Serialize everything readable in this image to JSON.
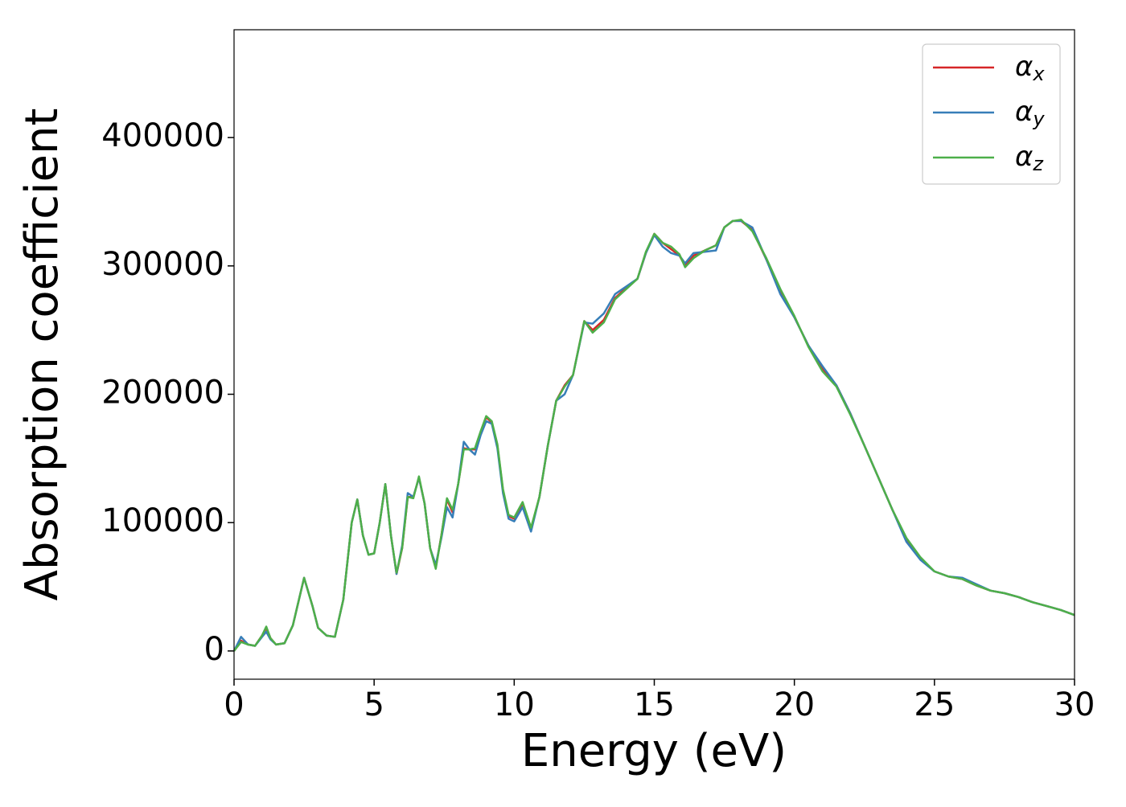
{
  "chart_data": {
    "type": "line",
    "xlabel": "Energy (eV)",
    "ylabel": "Absorption coefficient",
    "x": [
      0,
      0.25,
      0.5,
      0.75,
      1.0,
      1.15,
      1.3,
      1.5,
      1.8,
      2.1,
      2.5,
      2.8,
      3.0,
      3.3,
      3.6,
      3.9,
      4.2,
      4.4,
      4.6,
      4.8,
      5.0,
      5.2,
      5.4,
      5.6,
      5.8,
      6.0,
      6.2,
      6.4,
      6.6,
      6.8,
      7.0,
      7.2,
      7.4,
      7.6,
      7.8,
      8.0,
      8.2,
      8.4,
      8.6,
      8.8,
      9.0,
      9.2,
      9.4,
      9.6,
      9.8,
      10.0,
      10.3,
      10.6,
      10.9,
      11.2,
      11.5,
      11.8,
      12.1,
      12.5,
      12.8,
      13.2,
      13.6,
      14.0,
      14.4,
      14.7,
      15.0,
      15.3,
      15.6,
      15.9,
      16.1,
      16.4,
      16.8,
      17.2,
      17.5,
      17.8,
      18.1,
      18.5,
      19.0,
      19.5,
      20.0,
      20.5,
      21.0,
      21.5,
      22.0,
      22.5,
      23.0,
      23.5,
      24.0,
      24.5,
      25.0,
      25.5,
      26.0,
      26.5,
      27.0,
      27.5,
      28.0,
      28.5,
      29.0,
      29.5,
      30.0
    ],
    "series": [
      {
        "name": "αx",
        "color": "#d62728",
        "values": [
          0,
          8000,
          5000,
          4000,
          12000,
          18000,
          10000,
          5000,
          6000,
          20000,
          57000,
          35000,
          18000,
          12000,
          11000,
          40000,
          100000,
          118000,
          90000,
          75000,
          76000,
          100000,
          130000,
          90000,
          60000,
          80000,
          120000,
          120000,
          135000,
          115000,
          80000,
          65000,
          90000,
          118000,
          108000,
          130000,
          158000,
          157000,
          157000,
          170000,
          182000,
          178000,
          160000,
          125000,
          105000,
          103000,
          115000,
          95000,
          120000,
          160000,
          195000,
          207000,
          215000,
          257000,
          250000,
          258000,
          275000,
          283000,
          290000,
          310000,
          325000,
          318000,
          313000,
          308000,
          300000,
          308000,
          312000,
          316000,
          330000,
          335000,
          335000,
          328000,
          305000,
          280000,
          260000,
          238000,
          220000,
          207000,
          185000,
          160000,
          135000,
          110000,
          87000,
          72000,
          62000,
          58000,
          56000,
          51000,
          47000,
          45000,
          42000,
          38000,
          35000,
          32000,
          28000
        ]
      },
      {
        "name": "αy",
        "color": "#377eb8",
        "values": [
          0,
          11000,
          5000,
          4000,
          11000,
          15000,
          9000,
          5000,
          6000,
          20000,
          57000,
          35000,
          18000,
          12000,
          11000,
          40000,
          100000,
          118000,
          90000,
          75000,
          76000,
          100000,
          130000,
          90000,
          60000,
          82000,
          123000,
          120000,
          135000,
          115000,
          80000,
          67000,
          88000,
          112000,
          104000,
          130000,
          163000,
          157000,
          153000,
          168000,
          179000,
          177000,
          158000,
          123000,
          103000,
          101000,
          112000,
          93000,
          120000,
          160000,
          195000,
          200000,
          215000,
          256000,
          255000,
          263000,
          278000,
          284000,
          290000,
          310000,
          324000,
          315000,
          310000,
          308000,
          302000,
          310000,
          311000,
          312000,
          330000,
          335000,
          335000,
          330000,
          305000,
          278000,
          260000,
          238000,
          222000,
          207000,
          185000,
          160000,
          135000,
          110000,
          85000,
          71000,
          62000,
          58000,
          57000,
          52000,
          47000,
          45000,
          42000,
          38000,
          35000,
          32000,
          28000
        ]
      },
      {
        "name": "αz",
        "color": "#4daf4a",
        "values": [
          0,
          7000,
          5000,
          4000,
          12000,
          19000,
          10000,
          5000,
          6000,
          20000,
          57000,
          35000,
          18000,
          12000,
          11000,
          40000,
          100000,
          118000,
          90000,
          75000,
          76000,
          100000,
          130000,
          90000,
          61000,
          80000,
          120000,
          119000,
          136000,
          115000,
          80000,
          64000,
          90000,
          119000,
          110000,
          130000,
          157000,
          157000,
          158000,
          171000,
          183000,
          179000,
          161000,
          126000,
          106000,
          104000,
          116000,
          96000,
          120000,
          160000,
          195000,
          206000,
          215000,
          257000,
          248000,
          256000,
          274000,
          282000,
          290000,
          311000,
          325000,
          318000,
          315000,
          309000,
          299000,
          306000,
          312000,
          316000,
          330000,
          335000,
          336000,
          327000,
          306000,
          282000,
          261000,
          237000,
          218000,
          206000,
          184000,
          160000,
          135000,
          110000,
          88000,
          73000,
          62000,
          58000,
          56000,
          51000,
          47000,
          45000,
          42000,
          38000,
          35000,
          32000,
          28000
        ]
      }
    ],
    "xlim": [
      0,
      30
    ],
    "xticks": [
      0,
      5,
      10,
      15,
      20,
      25,
      30
    ],
    "ylim": [
      -22000,
      484000
    ],
    "yticks": [
      0,
      100000,
      200000,
      300000,
      400000
    ],
    "legend": "upper right",
    "grid": false
  }
}
